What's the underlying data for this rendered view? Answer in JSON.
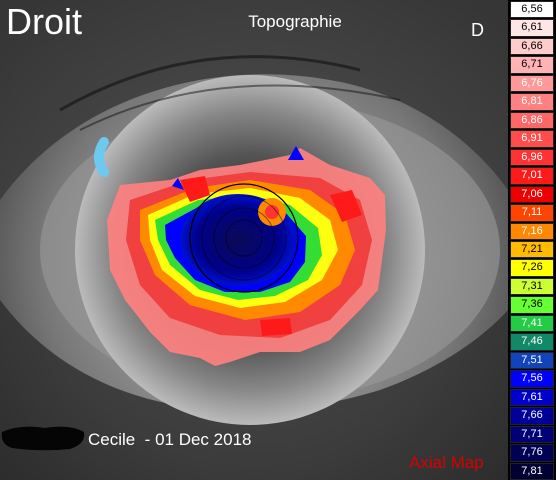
{
  "header": {
    "eye_side_title": "Droit",
    "map_title": "Topographie",
    "eye_letter": "D"
  },
  "footer": {
    "patient_line": "Cecile  - 01 Dec 2018",
    "map_type": "Axial Map"
  },
  "scale": {
    "values": [
      "6,56",
      "6,61",
      "6,66",
      "6,71",
      "6,76",
      "6,81",
      "6,86",
      "6,91",
      "6,96",
      "7,01",
      "7,06",
      "7,11",
      "7,16",
      "7,21",
      "7,26",
      "7,31",
      "7,36",
      "7,41",
      "7,46",
      "7,51",
      "7,56",
      "7,61",
      "7,66",
      "7,71",
      "7,76",
      "7,81"
    ],
    "colors": [
      "#ffffff",
      "#ffe6e6",
      "#ffcccc",
      "#ffb3b3",
      "#ff9999",
      "#ff8080",
      "#ff6666",
      "#ff4d4d",
      "#ff3333",
      "#ff1a1a",
      "#ee0000",
      "#ff4400",
      "#ff8800",
      "#ffbb00",
      "#ffff00",
      "#ccff33",
      "#66ff33",
      "#22cc44",
      "#118866",
      "#1144bb",
      "#0000ff",
      "#0000cc",
      "#000099",
      "#000077",
      "#000055",
      "#000033"
    ],
    "text_colors": [
      "#000",
      "#000",
      "#000",
      "#000",
      "#fff",
      "#fff",
      "#fff",
      "#fff",
      "#fff",
      "#fff",
      "#fff",
      "#fff",
      "#fff",
      "#000",
      "#000",
      "#000",
      "#000",
      "#fff",
      "#fff",
      "#fff",
      "#fff",
      "#fff",
      "#fff",
      "#fff",
      "#fff",
      "#fff"
    ]
  }
}
